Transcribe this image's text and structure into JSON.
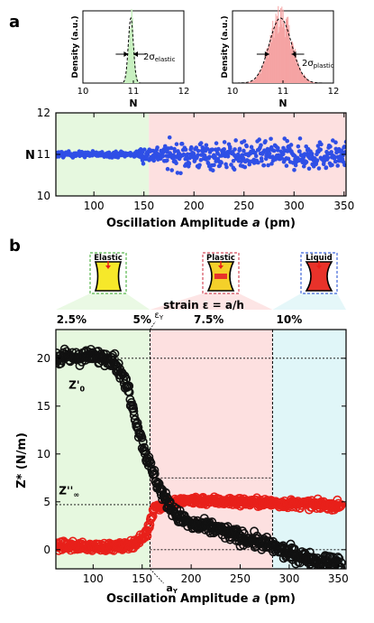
{
  "panel_labels": {
    "a": "a",
    "b": "b"
  },
  "colors": {
    "elastic_bg": "#e6f8df",
    "plastic_bg": "#fde0e0",
    "liquid_bg": "#e0f6f8",
    "blue_points": "#2f4fe6",
    "red_points": "#e8201a",
    "black_points": "#111111",
    "hist_green": "#c8f0c0",
    "hist_red": "#f5a3a3"
  },
  "insets": [
    {
      "label": "Elastic",
      "border": "#58b64c"
    },
    {
      "label": "Plastic",
      "border": "#d44c5c"
    },
    {
      "label": "Liquid",
      "border": "#3f66d9"
    }
  ],
  "chart_data": [
    {
      "type": "histogram",
      "panel": "a-left",
      "xlabel": "N",
      "ylabel": "Density (a.u.)",
      "xlim": [
        10,
        12
      ],
      "xticks": [
        "10",
        "11",
        "12"
      ],
      "annotation": "2σ",
      "annotation_sub": "elastic",
      "center": 10.95,
      "sigma": 0.05
    },
    {
      "type": "histogram",
      "panel": "a-right",
      "xlabel": "N",
      "ylabel": "Density (a.u.)",
      "xlim": [
        10,
        12
      ],
      "xticks": [
        "10",
        "11",
        "12"
      ],
      "annotation": "2σ",
      "annotation_sub": "plastic",
      "center": 10.95,
      "sigma": 0.22
    },
    {
      "type": "scatter",
      "panel": "a-main",
      "ylabel": "N",
      "xlabel": "Oscillation Amplitude",
      "xlabel_var": "a",
      "xlabel_unit": "(pm)",
      "xlim": [
        62,
        352
      ],
      "ylim": [
        10,
        12
      ],
      "xticks": [
        "100",
        "150",
        "200",
        "250",
        "300",
        "350"
      ],
      "yticks": [
        "10",
        "11",
        "12"
      ],
      "regions": [
        {
          "name": "elastic",
          "from": 62,
          "to": 155
        },
        {
          "name": "plastic",
          "from": 155,
          "to": 352
        }
      ],
      "series": [
        {
          "color": "blue",
          "segments": [
            {
              "x0": 62,
              "x1": 145,
              "mean": 11.0,
              "spread": 0.06
            },
            {
              "x0": 145,
              "x1": 170,
              "mean": 11.0,
              "spread": 0.18
            },
            {
              "x0": 170,
              "x1": 352,
              "mean": 10.97,
              "spread": 0.3
            }
          ]
        }
      ]
    },
    {
      "type": "scatter",
      "panel": "b",
      "ylabel": "Z* (N/m)",
      "xlabel": "Oscillation Amplitude",
      "xlabel_var": "a",
      "xlabel_unit": "(pm)",
      "xlim": [
        62,
        358
      ],
      "ylim": [
        -2,
        23
      ],
      "xticks": [
        "100",
        "150",
        "200",
        "250",
        "300",
        "350"
      ],
      "yticks": [
        "0",
        "5",
        "10",
        "15",
        "20"
      ],
      "top_axis_label": "strain ε = a/h",
      "top_ticks": [
        {
          "label": "2.5%",
          "x": 78
        },
        {
          "label": "5%",
          "x": 150
        },
        {
          "label": "7.5%",
          "x": 218
        },
        {
          "label": "10%",
          "x": 300
        }
      ],
      "regions": [
        {
          "name": "elastic",
          "from": 62,
          "to": 158
        },
        {
          "name": "plastic",
          "from": 158,
          "to": 283
        },
        {
          "name": "liquid",
          "from": 283,
          "to": 358
        }
      ],
      "yield_amplitude": 158,
      "yield_label": "a",
      "yield_label_sub": "Y",
      "strain_yield_label": "ε",
      "strain_yield_sub": "Y",
      "ref_lines": [
        {
          "y": 20,
          "x_from": 62,
          "x_to": 358
        },
        {
          "y": 7.5,
          "x_from": 158,
          "x_to": 283
        },
        {
          "y": 4.7,
          "x_from": 62,
          "x_to": 358
        },
        {
          "y": 0,
          "x_from": 158,
          "x_to": 358
        }
      ],
      "annotations": [
        {
          "text": "Z'",
          "sub": "0",
          "x": 75,
          "y": 16.8
        },
        {
          "text": "Z''",
          "sub": "∞",
          "x": 65,
          "y": 5.8
        }
      ],
      "series": [
        {
          "color": "black",
          "name": "Z'",
          "curve": [
            [
              62,
              20
            ],
            [
              100,
              20.2
            ],
            [
              120,
              20
            ],
            [
              135,
              17
            ],
            [
              145,
              13
            ],
            [
              155,
              9.5
            ],
            [
              165,
              7
            ],
            [
              175,
              5
            ],
            [
              185,
              3.6
            ],
            [
              200,
              2.6
            ],
            [
              225,
              2.2
            ],
            [
              250,
              1.3
            ],
            [
              275,
              0.6
            ],
            [
              300,
              -0.4
            ],
            [
              325,
              -1.1
            ],
            [
              352,
              -1.4
            ]
          ],
          "spread": 0.6
        },
        {
          "color": "red",
          "name": "Z''",
          "curve": [
            [
              62,
              0.4
            ],
            [
              100,
              0.3
            ],
            [
              130,
              0.3
            ],
            [
              145,
              0.8
            ],
            [
              155,
              1.8
            ],
            [
              162,
              4.4
            ],
            [
              175,
              4.8
            ],
            [
              200,
              5.2
            ],
            [
              225,
              5.1
            ],
            [
              250,
              5.0
            ],
            [
              300,
              4.8
            ],
            [
              352,
              4.6
            ]
          ],
          "spread": 0.35
        }
      ]
    }
  ]
}
